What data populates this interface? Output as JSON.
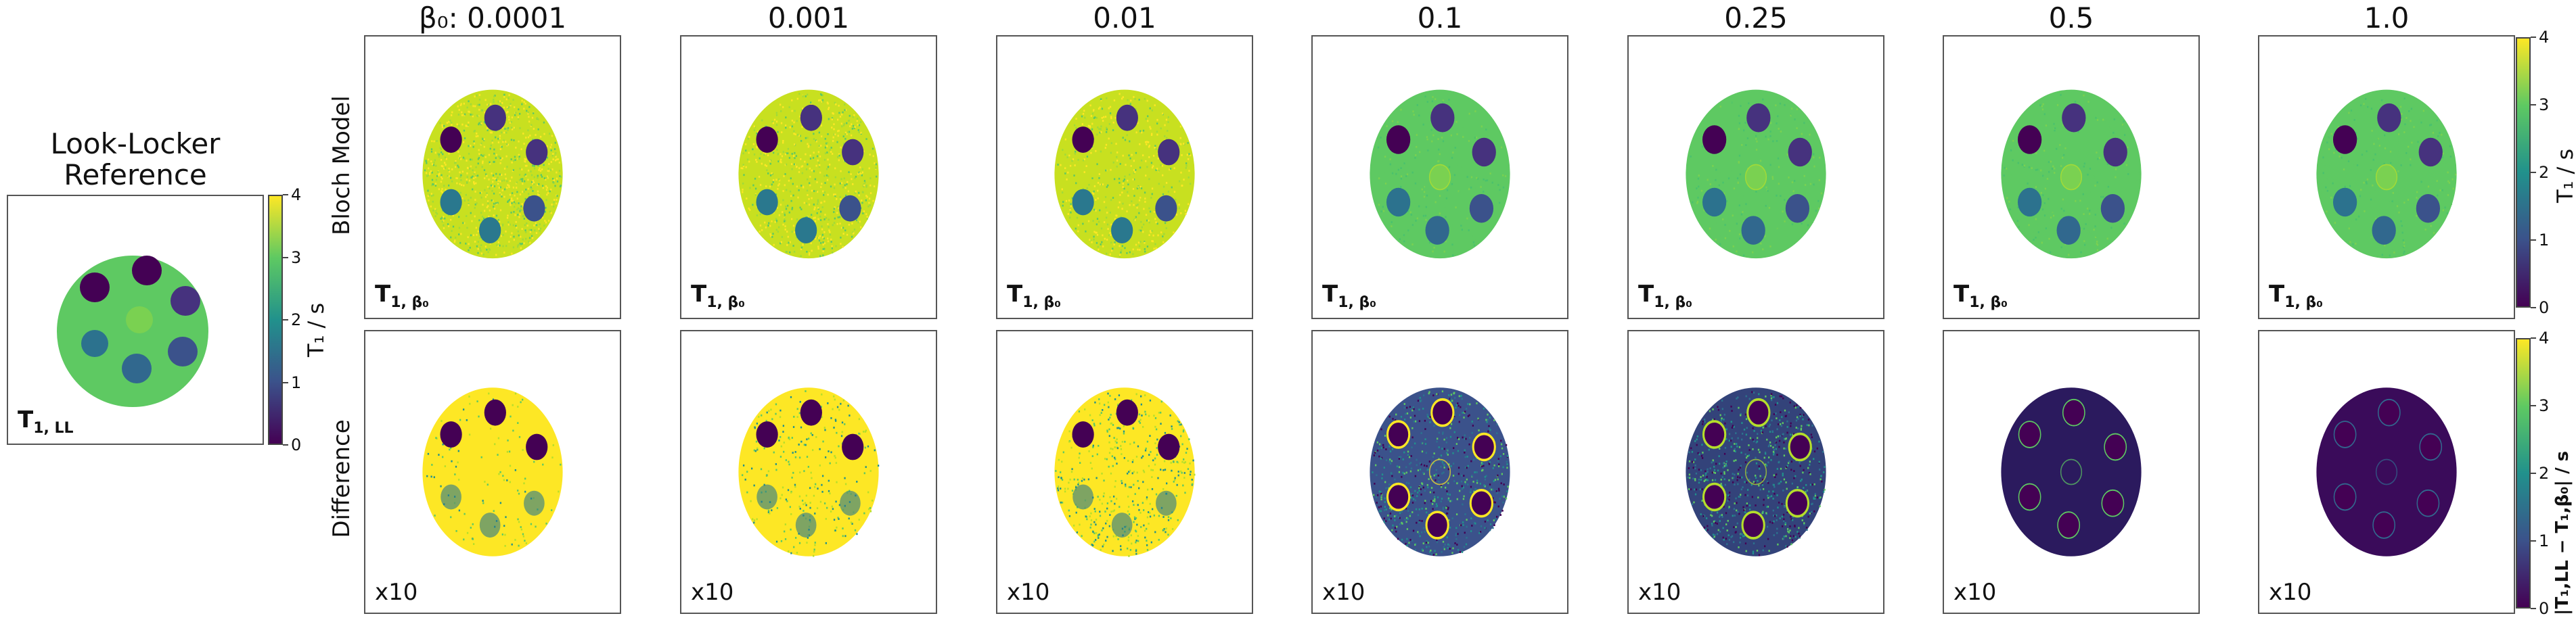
{
  "reference": {
    "title_line1": "Look-Locker",
    "title_line2": "Reference",
    "panel_label": "T",
    "panel_label_sub": "1, LL",
    "colorbar_label": "T₁ / s",
    "colorbar_ticks": [
      "0",
      "1",
      "2",
      "3",
      "4"
    ]
  },
  "columns": [
    {
      "title": "β₀: 0.0001"
    },
    {
      "title": "0.001"
    },
    {
      "title": "0.01"
    },
    {
      "title": "0.1"
    },
    {
      "title": "0.25"
    },
    {
      "title": "0.5"
    },
    {
      "title": "1.0"
    }
  ],
  "rows": {
    "top_label": "Bloch Model",
    "bottom_label": "Difference"
  },
  "panel_labels": {
    "top": "T",
    "top_sub": "1, β₀",
    "bottom": "x10"
  },
  "colorbars": {
    "top_label": "T₁ / s",
    "bottom_label": "|T₁,LL − T₁,β₀| / s",
    "ticks": [
      "0",
      "1",
      "2",
      "3",
      "4"
    ]
  },
  "colormap": {
    "low": "#440154",
    "mid": "#21918c",
    "high": "#fde725",
    "background": "#5ec962"
  }
}
